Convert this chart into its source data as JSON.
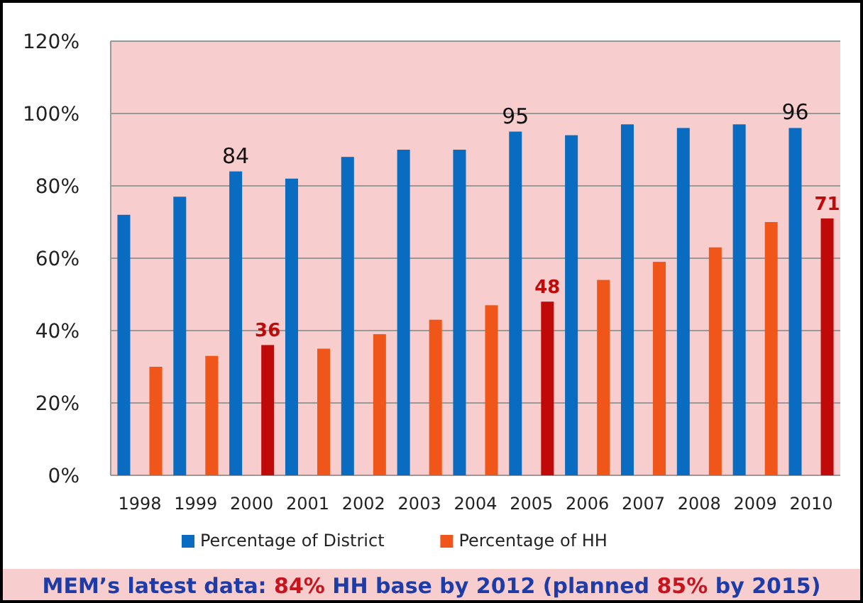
{
  "chart_data": {
    "type": "bar",
    "categories": [
      "1998",
      "1999",
      "2000",
      "2001",
      "2002",
      "2003",
      "2004",
      "2005",
      "2006",
      "2007",
      "2008",
      "2009",
      "2010"
    ],
    "series": [
      {
        "name": "Percentage of District",
        "color": "#0a6cc0",
        "values": [
          72,
          77,
          84,
          82,
          88,
          90,
          90,
          95,
          94,
          97,
          96,
          97,
          96
        ],
        "value_labels": [
          null,
          null,
          "84",
          null,
          null,
          null,
          null,
          "95",
          null,
          null,
          null,
          null,
          "96"
        ]
      },
      {
        "name": "Percentage of HH",
        "color": "#f0561a",
        "colors": [
          "#f0561a",
          "#f0561a",
          "#c00a0a",
          "#f0561a",
          "#f0561a",
          "#f0561a",
          "#f0561a",
          "#c00a0a",
          "#f0561a",
          "#f0561a",
          "#f0561a",
          "#f0561a",
          "#c00a0a"
        ],
        "values": [
          30,
          33,
          36,
          35,
          39,
          43,
          47,
          48,
          54,
          59,
          63,
          70,
          71
        ],
        "value_labels": [
          null,
          null,
          "36",
          null,
          null,
          null,
          null,
          "48",
          null,
          null,
          null,
          null,
          "71"
        ]
      }
    ],
    "ylim": [
      0,
      120
    ],
    "yticks": [
      {
        "value": 0,
        "label": "0%"
      },
      {
        "value": 20,
        "label": "20%"
      },
      {
        "value": 40,
        "label": "40%"
      },
      {
        "value": 60,
        "label": "60%"
      },
      {
        "value": 80,
        "label": "80%"
      },
      {
        "value": 100,
        "label": "100%"
      },
      {
        "value": 120,
        "label": "120%"
      }
    ],
    "grid": "y",
    "legend": "bottom",
    "annotations": [
      "MEM’s latest data: 84% HH base by 2012 (planned 85% by 2015)"
    ]
  }
}
